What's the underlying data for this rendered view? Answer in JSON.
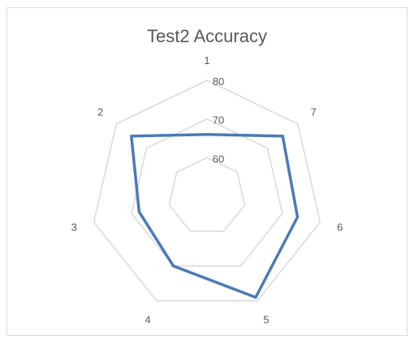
{
  "chart_data": {
    "type": "radar",
    "title": "Test2 Accuracy",
    "categories": [
      "1",
      "2",
      "3",
      "4",
      "5",
      "6",
      "7"
    ],
    "rlim": [
      50,
      80
    ],
    "ticks": [
      60,
      70,
      80
    ],
    "series": [
      {
        "values": [
          66,
          75,
          68,
          70,
          79,
          74,
          75
        ]
      }
    ],
    "grid": true,
    "legend": "none",
    "colors": {
      "series": "#4a7ab8",
      "grid": "#d9d9d9",
      "text": "#595959",
      "border": "#d9d9d9"
    }
  }
}
